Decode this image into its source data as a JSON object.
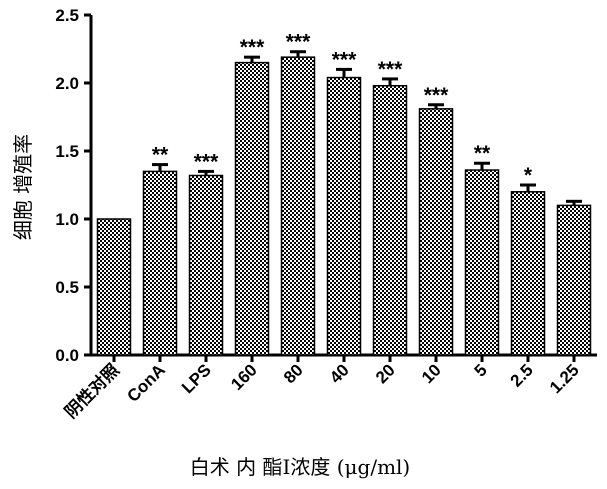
{
  "chart_data": {
    "type": "bar",
    "title": "",
    "ylabel": "细胞 增殖率",
    "xlabel": "白术 内 酯I浓度 (μg/ml)",
    "ylim": [
      0,
      2.5
    ],
    "yticks": [
      "0.0",
      "0.5",
      "1.0",
      "1.5",
      "2.0",
      "2.5"
    ],
    "categories": [
      "阴性对照",
      "ConA",
      "LPS",
      "160",
      "80",
      "40",
      "20",
      "10",
      "5",
      "2.5",
      "1.25"
    ],
    "values": [
      1.0,
      1.35,
      1.32,
      2.15,
      2.19,
      2.04,
      1.98,
      1.81,
      1.36,
      1.2,
      1.1
    ],
    "errors": [
      0.0,
      0.05,
      0.03,
      0.04,
      0.04,
      0.06,
      0.05,
      0.03,
      0.05,
      0.05,
      0.03
    ],
    "significance": [
      "",
      "**",
      "***",
      "***",
      "***",
      "***",
      "***",
      "***",
      "**",
      "*",
      ""
    ],
    "bar_pattern": "checkerboard",
    "colors": {
      "bar_dark": "#000000",
      "bar_light": "#ffffff",
      "axis": "#000000"
    }
  }
}
